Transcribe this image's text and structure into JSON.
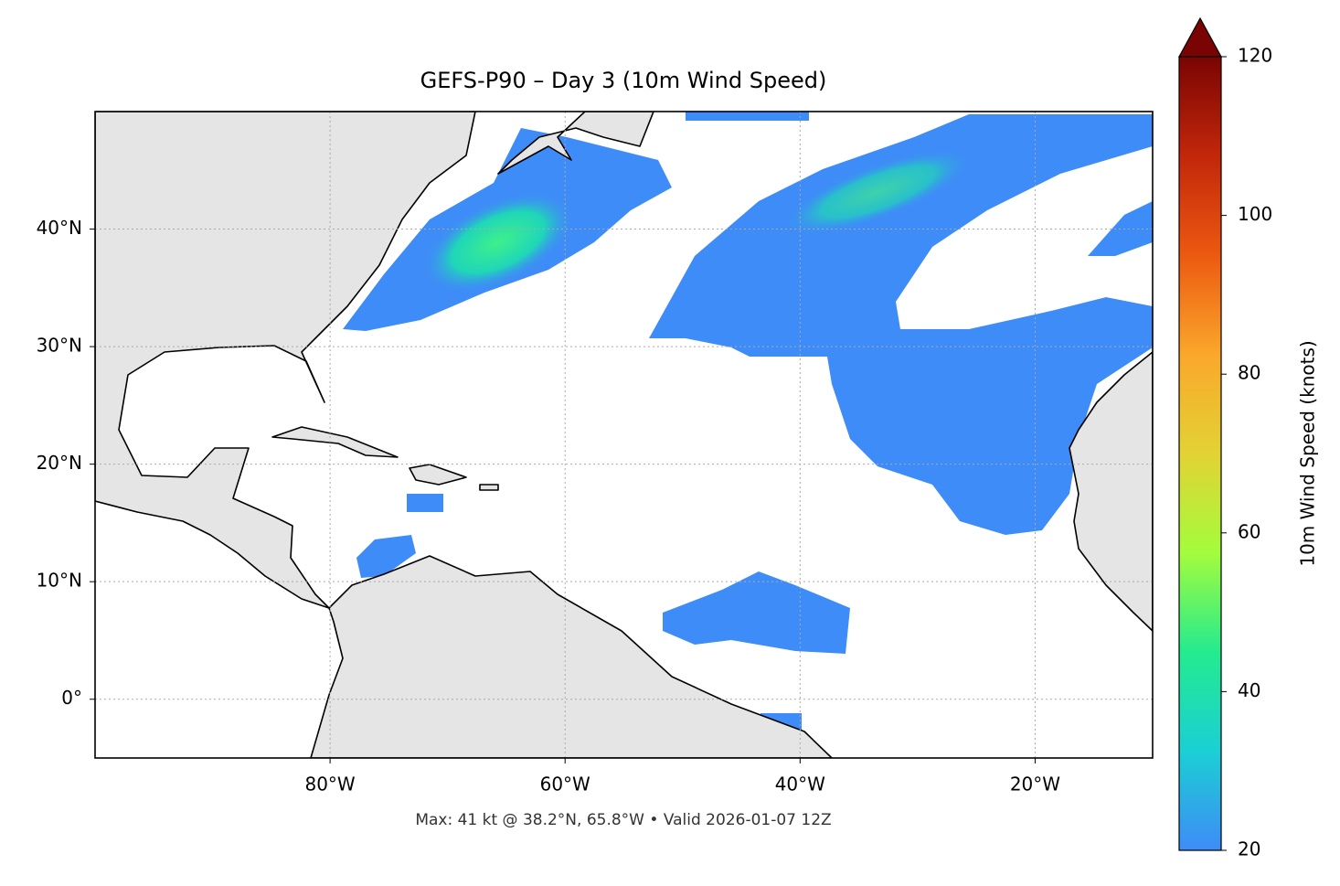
{
  "chart_data": {
    "type": "map",
    "title": "GEFS-P90 – Day 3 (10m Wind Speed)",
    "annotation": "Max: 41 kt @ 38.2°N, 65.8°W • Valid 2026-01-07 12Z",
    "xlim": [
      -100,
      -10
    ],
    "ylim": [
      -5,
      50
    ],
    "xticks": [
      {
        "value": -80,
        "label": "80°W"
      },
      {
        "value": -60,
        "label": "60°W"
      },
      {
        "value": -40,
        "label": "40°W"
      },
      {
        "value": -20,
        "label": "20°W"
      }
    ],
    "yticks": [
      {
        "value": 0,
        "label": "0°"
      },
      {
        "value": 10,
        "label": "10°N"
      },
      {
        "value": 20,
        "label": "20°N"
      },
      {
        "value": 30,
        "label": "30°N"
      },
      {
        "value": 40,
        "label": "40°N"
      }
    ],
    "grid": true,
    "colorbar": {
      "label": "10m Wind Speed (knots)",
      "lim": [
        20,
        120
      ],
      "ticks": [
        20,
        40,
        60,
        80,
        100,
        120
      ],
      "colors": [
        "#3e8cf7",
        "#1bcfd4",
        "#24eb8f",
        "#a4fc3c",
        "#e3d234",
        "#fba72b",
        "#ec5911",
        "#c2270a",
        "#7a0403"
      ]
    }
  }
}
